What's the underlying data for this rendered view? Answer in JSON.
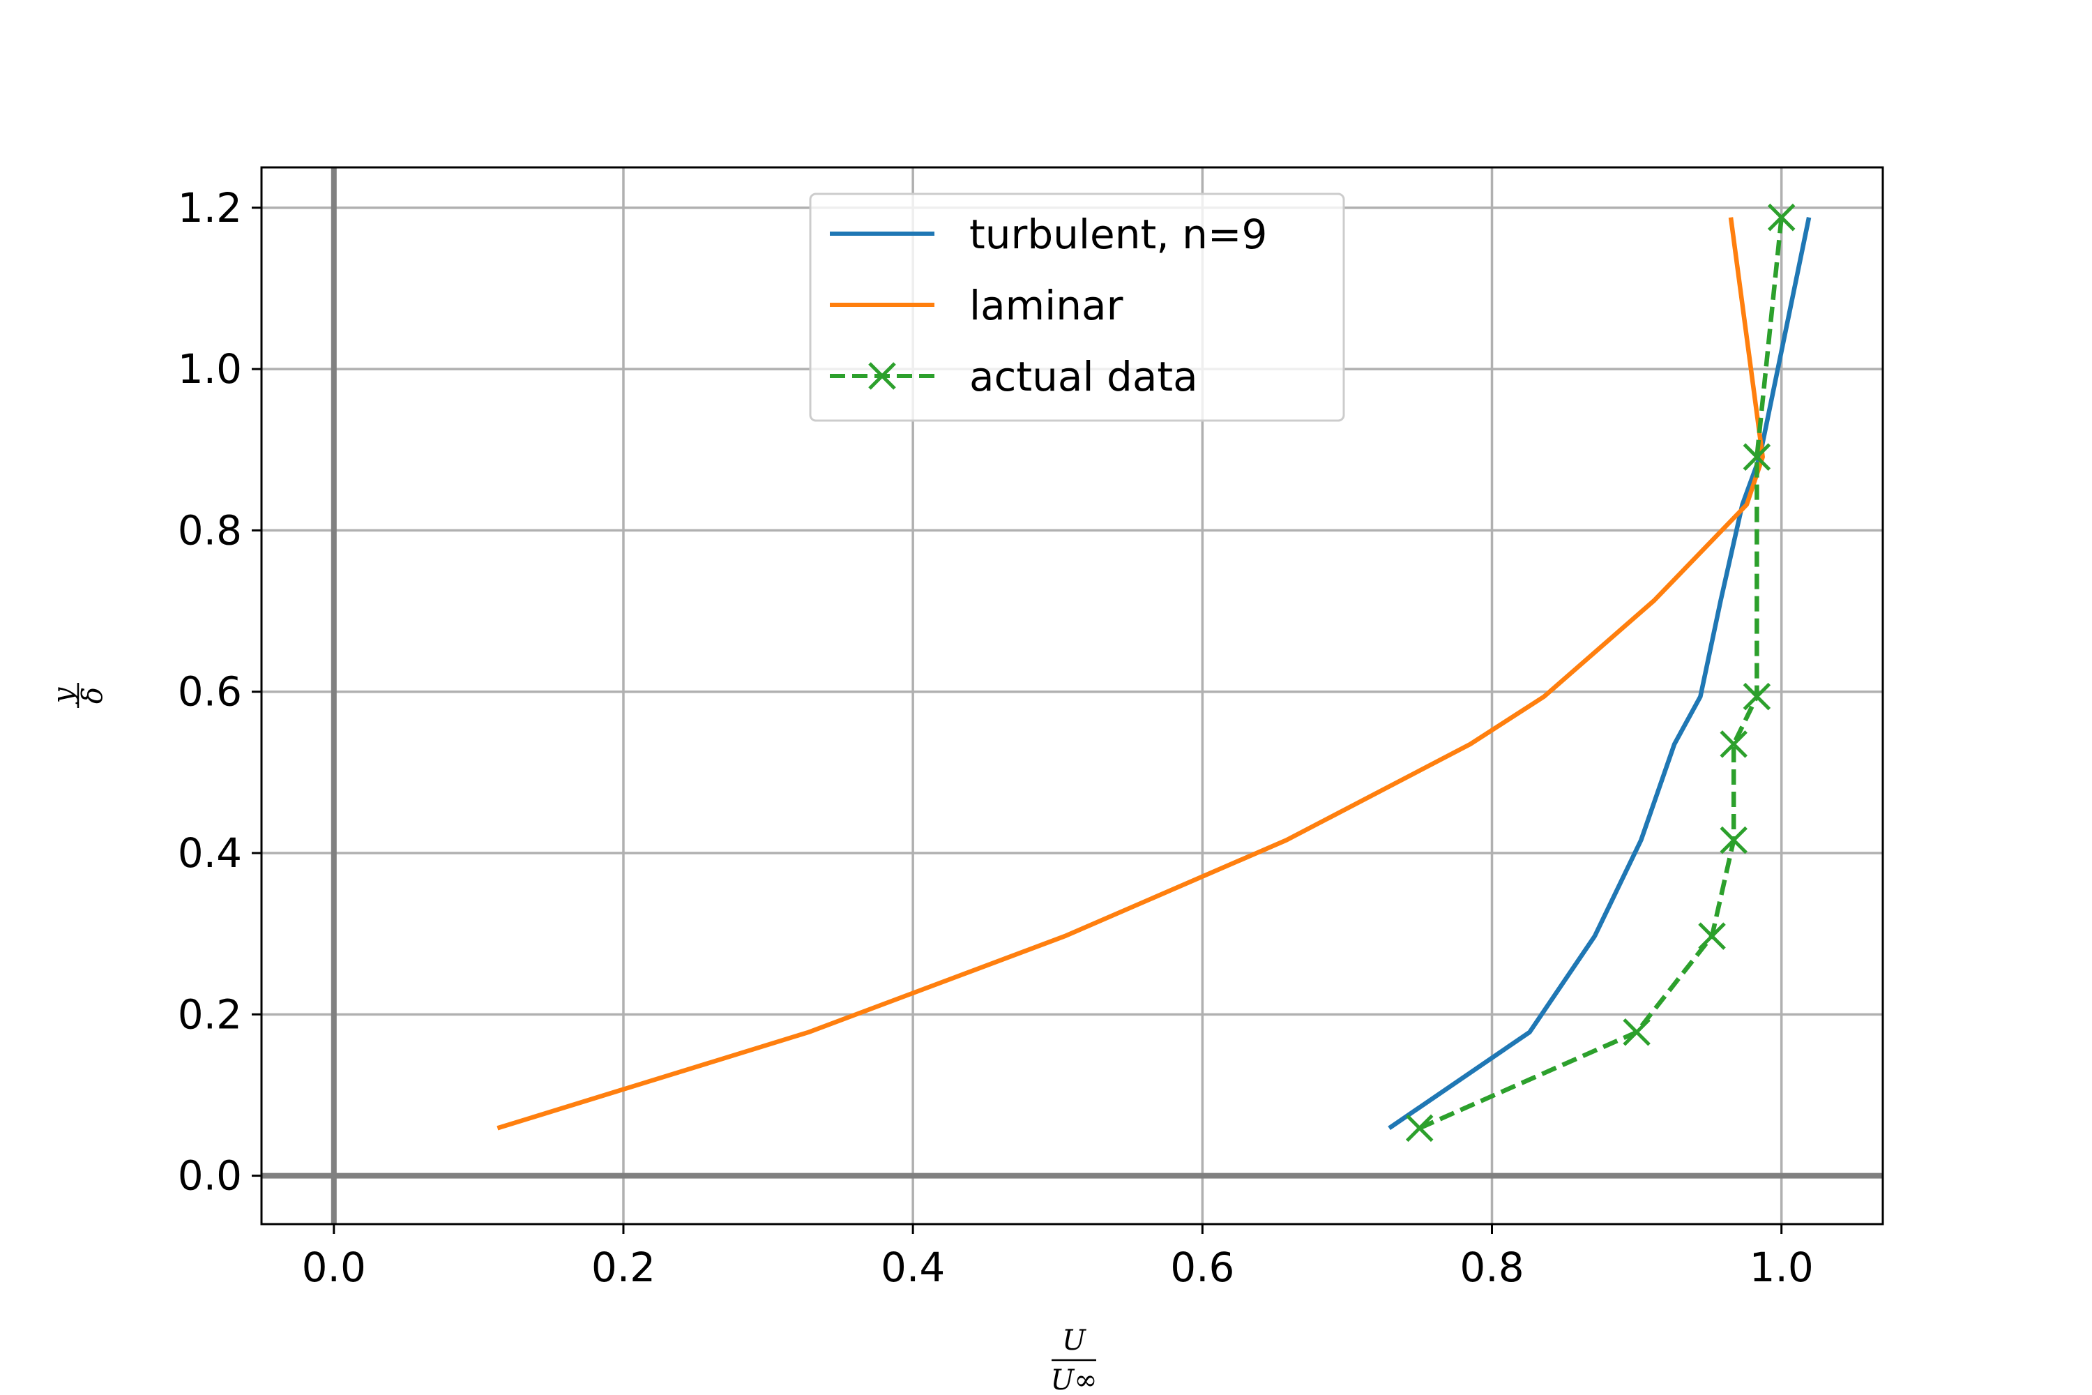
{
  "chart_data": {
    "type": "line",
    "title": "",
    "xlabel": {
      "numerator": "U",
      "denominator": "U∞"
    },
    "ylabel": {
      "numerator": "y",
      "denominator": "δ"
    },
    "xlim": [
      -0.05,
      1.07
    ],
    "ylim": [
      -0.06,
      1.25
    ],
    "xticks": [
      0.0,
      0.2,
      0.4,
      0.6,
      0.8,
      1.0
    ],
    "xtick_labels": [
      "0.0",
      "0.2",
      "0.4",
      "0.6",
      "0.8",
      "1.0"
    ],
    "yticks": [
      0.0,
      0.2,
      0.4,
      0.6,
      0.8,
      1.0,
      1.2
    ],
    "ytick_labels": [
      "0.0",
      "0.2",
      "0.4",
      "0.6",
      "0.8",
      "1.0",
      "1.2"
    ],
    "grid": true,
    "reference_lines": {
      "x": 0,
      "y": 0
    },
    "legend": "top-center",
    "series": [
      {
        "name": "turbulent, n=9",
        "color": "#1f77b4",
        "style": "solid",
        "marker": "none",
        "x": [
          0.729,
          0.826,
          0.871,
          0.903,
          0.926,
          0.944,
          0.958,
          0.973,
          0.985,
          1.019
        ],
        "y": [
          0.059,
          0.178,
          0.297,
          0.416,
          0.535,
          0.594,
          0.713,
          0.832,
          0.891,
          1.188
        ]
      },
      {
        "name": "laminar",
        "color": "#ff7f0e",
        "style": "solid",
        "marker": "none",
        "x": [
          0.113,
          0.328,
          0.505,
          0.658,
          0.785,
          0.836,
          0.912,
          0.976,
          0.987,
          0.965
        ],
        "y": [
          0.059,
          0.178,
          0.297,
          0.416,
          0.535,
          0.594,
          0.713,
          0.832,
          0.891,
          1.188
        ]
      },
      {
        "name": "actual data",
        "color": "#2ca02c",
        "style": "dashed",
        "marker": "x",
        "x": [
          0.75,
          0.9,
          0.952,
          0.967,
          0.967,
          0.983,
          0.983,
          1.0
        ],
        "y": [
          0.059,
          0.178,
          0.297,
          0.416,
          0.535,
          0.594,
          0.891,
          1.188
        ]
      }
    ]
  }
}
